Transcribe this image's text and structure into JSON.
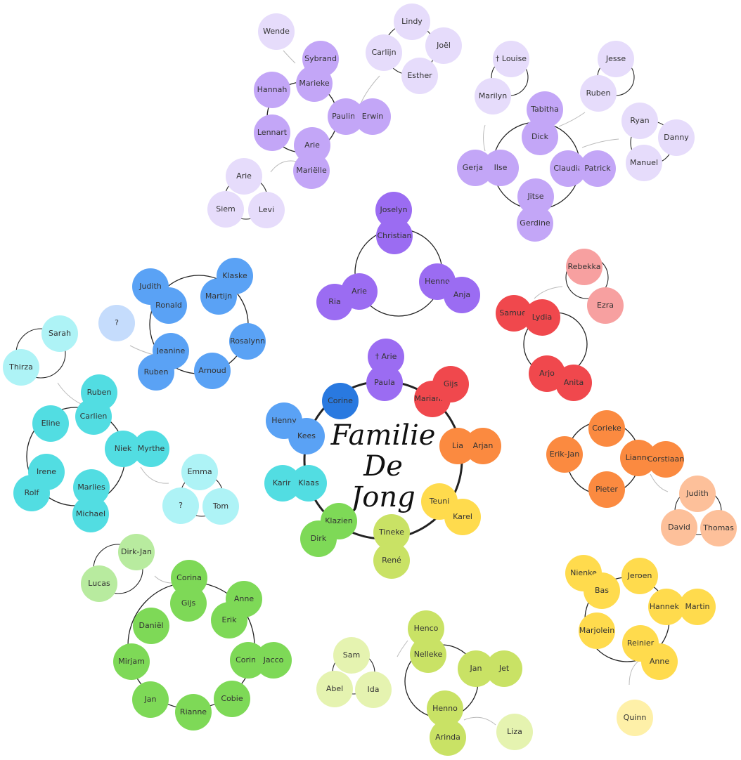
{
  "title": {
    "line1": "Familie",
    "line2": "De Jong"
  },
  "colors": {
    "purple": "#9b6cf2",
    "purple_light": "#c3a6f7",
    "purple_pale": "#e6dcfb",
    "blue": "#5aa2f5",
    "blue_dark": "#2979e0",
    "blue_pale": "#c5dcfc",
    "cyan": "#52dde2",
    "cyan_pale": "#aef3f6",
    "red": "#f0484d",
    "red_pale": "#f7a0a0",
    "orange": "#fb8a40",
    "orange_pale": "#fdc09a",
    "yellow": "#ffdb4d",
    "yellow_pale": "#fef0a8",
    "green": "#7ed957",
    "green_pale": "#b8eb9f",
    "lime": "#c9e265",
    "lime_pale": "#e5f3b0"
  },
  "people": [
    {
      "name": "† Arie",
      "color": "purple"
    },
    {
      "name": "Paula",
      "color": "purple"
    },
    {
      "name": "Corine",
      "color": "blue_dark"
    },
    {
      "name": "Marianne",
      "color": "red"
    },
    {
      "name": "Gijs",
      "color": "red"
    },
    {
      "name": "Henny",
      "color": "blue"
    },
    {
      "name": "Kees",
      "color": "blue"
    },
    {
      "name": "Lia",
      "color": "orange"
    },
    {
      "name": "Arjan",
      "color": "orange"
    },
    {
      "name": "Karin",
      "color": "cyan"
    },
    {
      "name": "Klaas",
      "color": "cyan"
    },
    {
      "name": "Teuni",
      "color": "yellow"
    },
    {
      "name": "Karel",
      "color": "yellow"
    },
    {
      "name": "Klazien",
      "color": "green"
    },
    {
      "name": "Dirk",
      "color": "green"
    },
    {
      "name": "Tineke",
      "color": "lime"
    },
    {
      "name": "René",
      "color": "lime"
    },
    {
      "name": "Joselyn",
      "color": "purple"
    },
    {
      "name": "Christian",
      "color": "purple"
    },
    {
      "name": "Arie",
      "color": "purple"
    },
    {
      "name": "Ria",
      "color": "purple"
    },
    {
      "name": "Henno",
      "color": "purple"
    },
    {
      "name": "Anja",
      "color": "purple"
    },
    {
      "name": "Wende",
      "color": "purple_pale"
    },
    {
      "name": "Sybrand",
      "color": "purple_light"
    },
    {
      "name": "Marieke",
      "color": "purple_light"
    },
    {
      "name": "Hannah",
      "color": "purple_light"
    },
    {
      "name": "Lennart",
      "color": "purple_light"
    },
    {
      "name": "Arie",
      "color": "purple_light"
    },
    {
      "name": "Mariëlle",
      "color": "purple_light"
    },
    {
      "name": "Pauline",
      "color": "purple_light"
    },
    {
      "name": "Erwin",
      "color": "purple_light"
    },
    {
      "name": "Arie",
      "color": "purple_pale"
    },
    {
      "name": "Siem",
      "color": "purple_pale"
    },
    {
      "name": "Levi",
      "color": "purple_pale"
    },
    {
      "name": "Lindy",
      "color": "purple_pale"
    },
    {
      "name": "Carlijn",
      "color": "purple_pale"
    },
    {
      "name": "Joël",
      "color": "purple_pale"
    },
    {
      "name": "Esther",
      "color": "purple_pale"
    },
    {
      "name": "† Louise",
      "color": "purple_pale"
    },
    {
      "name": "Marilyn",
      "color": "purple_pale"
    },
    {
      "name": "Tabitha",
      "color": "purple_light"
    },
    {
      "name": "Dick",
      "color": "purple_light"
    },
    {
      "name": "Gerjan",
      "color": "purple_light"
    },
    {
      "name": "Ilse",
      "color": "purple_light"
    },
    {
      "name": "Claudia",
      "color": "purple_light"
    },
    {
      "name": "Patrick",
      "color": "purple_light"
    },
    {
      "name": "Jitse",
      "color": "purple_light"
    },
    {
      "name": "Gerdine",
      "color": "purple_light"
    },
    {
      "name": "Jesse",
      "color": "purple_pale"
    },
    {
      "name": "Ruben",
      "color": "purple_pale"
    },
    {
      "name": "Ryan",
      "color": "purple_pale"
    },
    {
      "name": "Danny",
      "color": "purple_pale"
    },
    {
      "name": "Manuel",
      "color": "purple_pale"
    },
    {
      "name": "Judith",
      "color": "blue"
    },
    {
      "name": "Ronald",
      "color": "blue"
    },
    {
      "name": "Klaske",
      "color": "blue"
    },
    {
      "name": "Martijn",
      "color": "blue"
    },
    {
      "name": "Rosalynn",
      "color": "blue"
    },
    {
      "name": "Arnoud",
      "color": "blue"
    },
    {
      "name": "Jeanine",
      "color": "blue"
    },
    {
      "name": "Ruben",
      "color": "blue"
    },
    {
      "name": "?",
      "color": "blue_pale"
    },
    {
      "name": "Sarah",
      "color": "cyan_pale"
    },
    {
      "name": "Thirza",
      "color": "cyan_pale"
    },
    {
      "name": "Ruben",
      "color": "cyan"
    },
    {
      "name": "Carlien",
      "color": "cyan"
    },
    {
      "name": "Eline",
      "color": "cyan"
    },
    {
      "name": "Niek",
      "color": "cyan"
    },
    {
      "name": "Myrthe",
      "color": "cyan"
    },
    {
      "name": "Irene",
      "color": "cyan"
    },
    {
      "name": "Rolf",
      "color": "cyan"
    },
    {
      "name": "Marlies",
      "color": "cyan"
    },
    {
      "name": "Michael",
      "color": "cyan"
    },
    {
      "name": "Emma",
      "color": "cyan_pale"
    },
    {
      "name": "?",
      "color": "cyan_pale"
    },
    {
      "name": "Tom",
      "color": "cyan_pale"
    },
    {
      "name": "Rebekka",
      "color": "red_pale"
    },
    {
      "name": "Ezra",
      "color": "red_pale"
    },
    {
      "name": "Samuel",
      "color": "red"
    },
    {
      "name": "Lydia",
      "color": "red"
    },
    {
      "name": "Arjo",
      "color": "red"
    },
    {
      "name": "Anita",
      "color": "red"
    },
    {
      "name": "Corieke",
      "color": "orange"
    },
    {
      "name": "Erik-Jan",
      "color": "orange"
    },
    {
      "name": "Lianne",
      "color": "orange"
    },
    {
      "name": "Corstiaan",
      "color": "orange"
    },
    {
      "name": "Pieter",
      "color": "orange"
    },
    {
      "name": "Judith",
      "color": "orange_pale"
    },
    {
      "name": "David",
      "color": "orange_pale"
    },
    {
      "name": "Thomas",
      "color": "orange_pale"
    },
    {
      "name": "Nienke",
      "color": "yellow"
    },
    {
      "name": "Bas",
      "color": "yellow"
    },
    {
      "name": "Jeroen",
      "color": "yellow"
    },
    {
      "name": "Hanneke",
      "color": "yellow"
    },
    {
      "name": "Martin",
      "color": "yellow"
    },
    {
      "name": "Marjolein",
      "color": "yellow"
    },
    {
      "name": "Reinier",
      "color": "yellow"
    },
    {
      "name": "Anne",
      "color": "yellow"
    },
    {
      "name": "Quinn",
      "color": "yellow_pale"
    },
    {
      "name": "Dirk-Jan",
      "color": "green_pale"
    },
    {
      "name": "Lucas",
      "color": "green_pale"
    },
    {
      "name": "Corina",
      "color": "green"
    },
    {
      "name": "Gijs",
      "color": "green"
    },
    {
      "name": "Anne",
      "color": "green"
    },
    {
      "name": "Erik",
      "color": "green"
    },
    {
      "name": "Daniël",
      "color": "green"
    },
    {
      "name": "Mirjam",
      "color": "green"
    },
    {
      "name": "Corine",
      "color": "green"
    },
    {
      "name": "Jacco",
      "color": "green"
    },
    {
      "name": "Jan",
      "color": "green"
    },
    {
      "name": "Rianne",
      "color": "green"
    },
    {
      "name": "Cobie",
      "color": "green"
    },
    {
      "name": "Henco",
      "color": "lime"
    },
    {
      "name": "Nelleke",
      "color": "lime"
    },
    {
      "name": "Jan",
      "color": "lime"
    },
    {
      "name": "Jet",
      "color": "lime"
    },
    {
      "name": "Henno",
      "color": "lime"
    },
    {
      "name": "Arinda",
      "color": "lime"
    },
    {
      "name": "Liza",
      "color": "lime_pale"
    },
    {
      "name": "Sam",
      "color": "lime_pale"
    },
    {
      "name": "Abel",
      "color": "lime_pale"
    },
    {
      "name": "Ida",
      "color": "lime_pale"
    }
  ]
}
